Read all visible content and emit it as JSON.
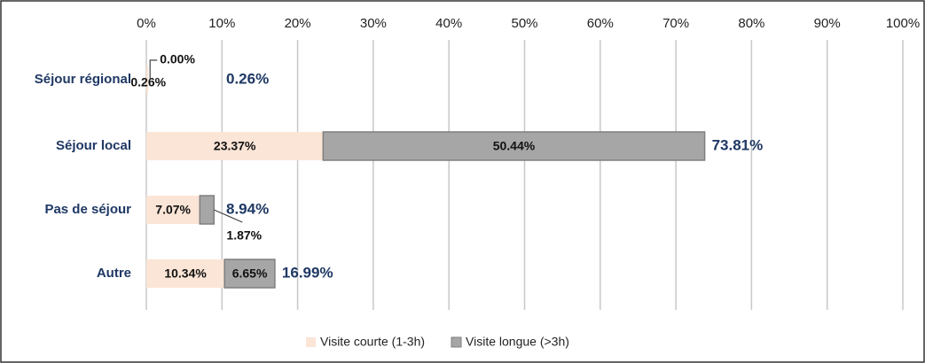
{
  "chart_data": {
    "type": "stacked-barh",
    "categories": [
      "Séjour régional",
      "Séjour local",
      "Pas de séjour",
      "Autre"
    ],
    "series": [
      {
        "name": "Visite courte (1-3h)",
        "color": "#fbe5d6",
        "values": [
          0.26,
          23.37,
          7.07,
          10.34
        ],
        "value_labels": [
          "0.26%",
          "23.37%",
          "7.07%",
          "10.34%"
        ]
      },
      {
        "name": "Visite longue (>3h)",
        "color": "#a6a6a6",
        "values": [
          0.0,
          50.44,
          1.87,
          6.65
        ],
        "value_labels": [
          "0.00%",
          "50.44%",
          "1.87%",
          "6.65%"
        ]
      }
    ],
    "totals": {
      "values": [
        0.26,
        73.81,
        8.94,
        16.99
      ],
      "value_labels": [
        "0.26%",
        "73.81%",
        "8.94%",
        "16.99%"
      ]
    },
    "xlim": [
      0,
      100
    ],
    "xticks": [
      {
        "value": 0,
        "label": "0%"
      },
      {
        "value": 10,
        "label": "10%"
      },
      {
        "value": 20,
        "label": "20%"
      },
      {
        "value": 30,
        "label": "30%"
      },
      {
        "value": 40,
        "label": "40%"
      },
      {
        "value": 50,
        "label": "50%"
      },
      {
        "value": 60,
        "label": "60%"
      },
      {
        "value": 70,
        "label": "70%"
      },
      {
        "value": 80,
        "label": "80%"
      },
      {
        "value": 90,
        "label": "90%"
      },
      {
        "value": 100,
        "label": "100%"
      }
    ],
    "grid": true,
    "legend": "bottom"
  }
}
